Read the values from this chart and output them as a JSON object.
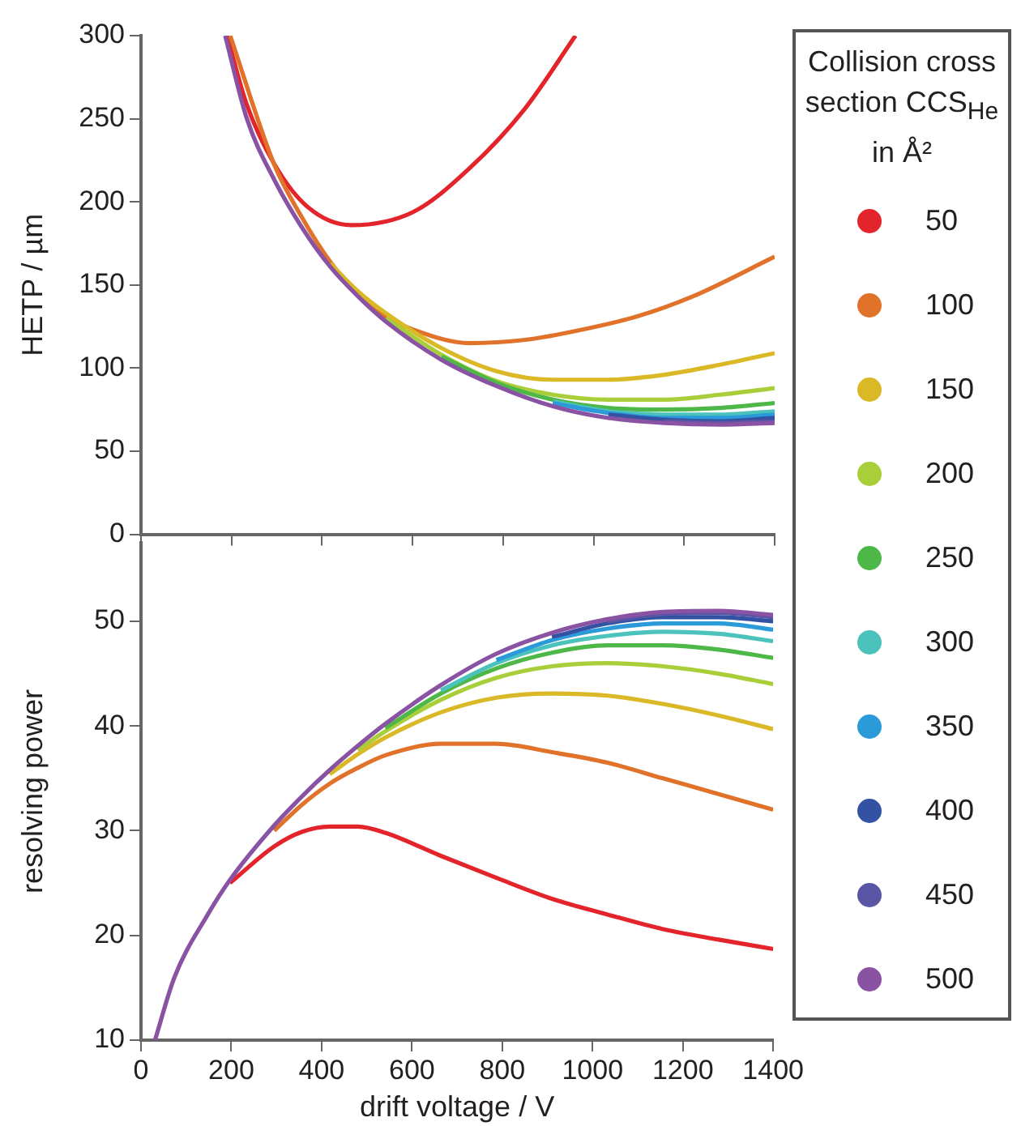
{
  "chart_data": [
    {
      "type": "line",
      "ylabel": "HETP / µm",
      "legend_title": "Collision cross section CCS$_{He}$ in Å²",
      "legend": "right",
      "marker": "none",
      "line_style": "solid",
      "grid": false,
      "tick_labels": "y",
      "xlim": [
        0,
        1400
      ],
      "xticks": [
        {
          "value": 0,
          "label": null
        },
        {
          "value": 200,
          "label": null
        },
        {
          "value": 400,
          "label": null
        },
        {
          "value": 600,
          "label": null
        },
        {
          "value": 800,
          "label": null
        },
        {
          "value": 1000,
          "label": null
        },
        {
          "value": 1200,
          "label": null
        },
        {
          "value": 1400,
          "label": null
        }
      ],
      "ylim": [
        0,
        300
      ],
      "yticks": [
        0,
        50,
        100,
        150,
        200,
        250,
        300
      ],
      "series": [
        {
          "name": "50",
          "color": "#e3242b",
          "x": [
            190,
            233,
            294,
            368,
            465,
            602,
            725,
            848,
            960
          ],
          "values": [
            300,
            259,
            223,
            197,
            186,
            194,
            220,
            256,
            300
          ]
        },
        {
          "name": "100",
          "color": "#e0722a",
          "x": [
            197,
            295,
            357,
            418,
            480,
            541,
            603,
            726,
            849,
            972,
            1095,
            1218,
            1400
          ],
          "values": [
            300,
            222,
            190,
            164,
            144,
            131,
            123,
            115,
            117,
            123,
            131,
            143,
            167
          ]
        },
        {
          "name": "150",
          "color": "#dbb826",
          "x": [
            418,
            480,
            541,
            664,
            787,
            910,
            1033,
            1156,
            1279,
            1400
          ],
          "values": [
            163,
            146,
            133,
            112,
            98,
            93,
            93,
            96,
            102,
            109
          ]
        },
        {
          "name": "200",
          "color": "#a8cf3a",
          "x": [
            541,
            664,
            787,
            910,
            1033,
            1156,
            1279,
            1400
          ],
          "values": [
            130,
            108,
            92,
            84,
            81,
            81,
            84,
            88
          ]
        },
        {
          "name": "250",
          "color": "#4db748",
          "x": [
            664,
            787,
            910,
            1033,
            1156,
            1279,
            1400
          ],
          "values": [
            107,
            91,
            81,
            76,
            75,
            76,
            79
          ]
        },
        {
          "name": "300",
          "color": "#4cc2bd",
          "x": [
            910,
            1033,
            1156,
            1279,
            1400
          ],
          "values": [
            80,
            74,
            72,
            72,
            74
          ]
        },
        {
          "name": "350",
          "color": "#2a9ad8",
          "x": [
            910,
            1033,
            1156,
            1279,
            1400
          ],
          "values": [
            79,
            73,
            70,
            70,
            72
          ]
        },
        {
          "name": "400",
          "color": "#3352a3",
          "x": [
            1033,
            1156,
            1279,
            1400
          ],
          "values": [
            72,
            69,
            68,
            70
          ]
        },
        {
          "name": "450",
          "color": "#5b55a5",
          "x": [
            1156,
            1279,
            1400
          ],
          "values": [
            68,
            67,
            68
          ]
        },
        {
          "name": "500",
          "color": "#8a52a3",
          "x": [
            186,
            234,
            295,
            357,
            418,
            480,
            541,
            664,
            787,
            910,
            1033,
            1156,
            1279,
            1400
          ],
          "values": [
            300,
            250,
            213,
            184,
            161,
            143,
            128,
            105,
            89,
            77,
            70,
            67,
            66,
            67
          ]
        }
      ]
    },
    {
      "type": "line",
      "xlabel": "drift voltage / V",
      "ylabel": "resolving power",
      "marker": "none",
      "line_style": "solid",
      "grid": false,
      "xlim": [
        0,
        1400
      ],
      "xticks": [
        0,
        200,
        400,
        600,
        800,
        1000,
        1200,
        1400
      ],
      "ylim": [
        10,
        57.5
      ],
      "yticks": [
        10,
        20,
        30,
        40,
        50
      ],
      "series": [
        {
          "color": "#e3242b",
          "x": [
            197,
            295,
            357,
            418,
            480,
            541,
            664,
            787,
            910,
            1033,
            1156,
            1279,
            1400
          ],
          "values": [
            25,
            28.5,
            29.9,
            30.4,
            30.4,
            29.8,
            27.6,
            25.5,
            23.5,
            22,
            20.6,
            19.6,
            18.7
          ]
        },
        {
          "color": "#e0722a",
          "x": [
            295,
            357,
            418,
            480,
            541,
            664,
            787,
            910,
            1033,
            1156,
            1279,
            1400
          ],
          "values": [
            30,
            32.5,
            34.5,
            36,
            37.2,
            38.3,
            38.3,
            37.5,
            36.5,
            35,
            33.5,
            32
          ]
        },
        {
          "color": "#dbb826",
          "x": [
            418,
            480,
            541,
            664,
            787,
            910,
            1033,
            1156,
            1279,
            1400
          ],
          "values": [
            35.4,
            37.3,
            38.9,
            41.3,
            42.7,
            43.1,
            42.9,
            42.1,
            41,
            39.7
          ]
        },
        {
          "color": "#a8cf3a",
          "x": [
            480,
            541,
            664,
            787,
            910,
            1033,
            1156,
            1279,
            1400
          ],
          "values": [
            37.7,
            39.5,
            42.5,
            44.6,
            45.7,
            46,
            45.7,
            45,
            44
          ]
        },
        {
          "color": "#4db748",
          "x": [
            541,
            664,
            787,
            910,
            1033,
            1156,
            1279,
            1400
          ],
          "values": [
            39.8,
            43.1,
            45.5,
            47,
            47.7,
            47.7,
            47.3,
            46.5
          ]
        },
        {
          "color": "#4cc2bd",
          "x": [
            664,
            787,
            910,
            1033,
            1156,
            1279,
            1400
          ],
          "values": [
            43.4,
            46,
            47.7,
            48.6,
            49,
            48.8,
            48.1
          ]
        },
        {
          "color": "#2a9ad8",
          "x": [
            787,
            910,
            1033,
            1156,
            1279,
            1400
          ],
          "values": [
            46.3,
            48.2,
            49.3,
            49.8,
            49.8,
            49.2
          ]
        },
        {
          "color": "#3352a3",
          "x": [
            910,
            1033,
            1156,
            1279,
            1400
          ],
          "values": [
            48.5,
            49.8,
            50.4,
            50.4,
            50
          ]
        },
        {
          "color": "#5b55a5",
          "x": [
            1033,
            1156,
            1279,
            1400
          ],
          "values": [
            50,
            50.7,
            50.8,
            50.4
          ]
        },
        {
          "color": "#8a52a3",
          "x": [
            31,
            74,
            148,
            197,
            295,
            357,
            418,
            480,
            541,
            664,
            787,
            910,
            1033,
            1156,
            1279,
            1400
          ],
          "values": [
            10,
            16,
            22,
            25.3,
            30.5,
            33.3,
            35.8,
            38.1,
            40.2,
            43.9,
            46.9,
            48.9,
            50.2,
            50.9,
            51,
            50.6
          ]
        }
      ]
    }
  ]
}
